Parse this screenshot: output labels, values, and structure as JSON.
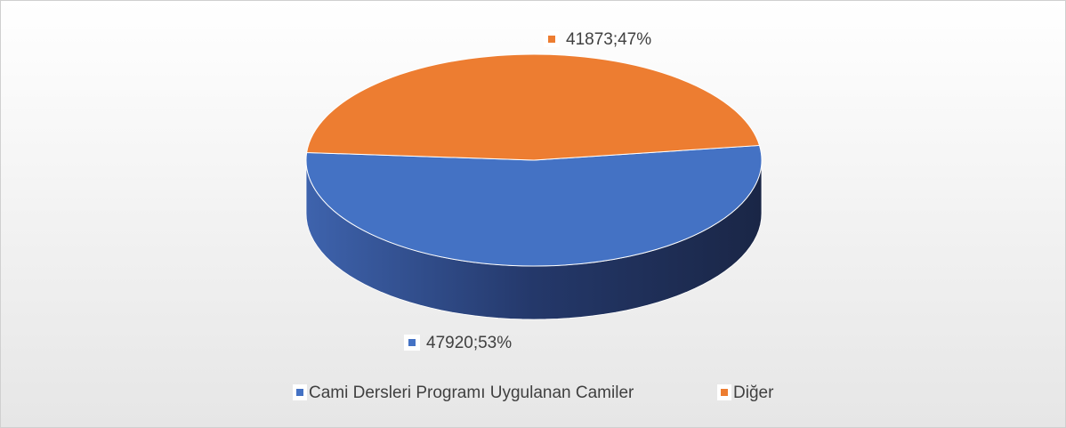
{
  "chart_data": {
    "type": "pie3d",
    "categories": [
      "Cami Dersleri Programı Uygulanan Camiler",
      "Diğer"
    ],
    "values": [
      47920,
      41873
    ],
    "value_labels": [
      "47920;53%",
      "41873;47%"
    ],
    "colors": [
      "#4472c4",
      "#ed7d31"
    ],
    "legend": "bottom"
  }
}
